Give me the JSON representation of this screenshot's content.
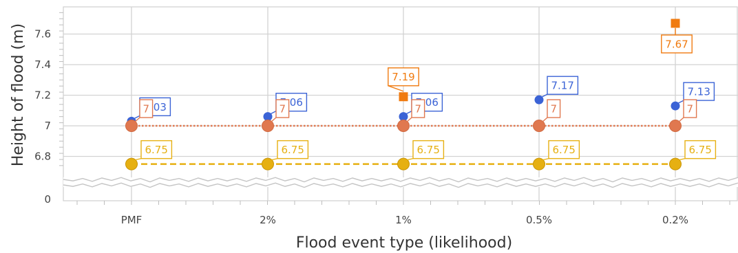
{
  "chart_data": {
    "type": "line",
    "title": "",
    "xlabel": "Flood event type (likelihood)",
    "ylabel": "Height of flood (m)",
    "categories": [
      "PMF",
      "2%",
      "1%",
      "0.5%",
      "0.2%"
    ],
    "y_break": {
      "below": 6.7,
      "shown_tick": 0
    },
    "ylim": [
      6.66,
      7.78
    ],
    "yticks": [
      6.8,
      7,
      7.2,
      7.4,
      7.6
    ],
    "ytick_labels": [
      "0",
      "6.8",
      "7",
      "7.2",
      "7.4",
      "7.6"
    ],
    "grid": true,
    "legend": "none",
    "series": [
      {
        "key": "blue",
        "values": [
          7.03,
          7.06,
          7.06,
          7.17,
          7.13
        ],
        "labels": [
          "7.03",
          "7.06",
          "7.06",
          "7.17",
          "7.13"
        ],
        "color": "#3b63d6",
        "marker": "circle",
        "line": "none"
      },
      {
        "key": "orange-square",
        "values": [
          null,
          null,
          7.19,
          null,
          7.67
        ],
        "labels": [
          "",
          "",
          "7.19",
          "",
          "7.67"
        ],
        "color": "#f07b10",
        "marker": "square",
        "line": "none"
      },
      {
        "key": "salmon",
        "values": [
          7,
          7,
          7,
          7,
          7
        ],
        "labels": [
          "7",
          "7",
          "7",
          "7",
          "7"
        ],
        "color": "#e0784f",
        "marker": "circle",
        "line": "dotted"
      },
      {
        "key": "gold",
        "values": [
          6.75,
          6.75,
          6.75,
          6.75,
          6.75
        ],
        "labels": [
          "6.75",
          "6.75",
          "6.75",
          "6.75",
          "6.75"
        ],
        "color": "#e6b012",
        "marker": "circle",
        "line": "dashed"
      }
    ]
  }
}
